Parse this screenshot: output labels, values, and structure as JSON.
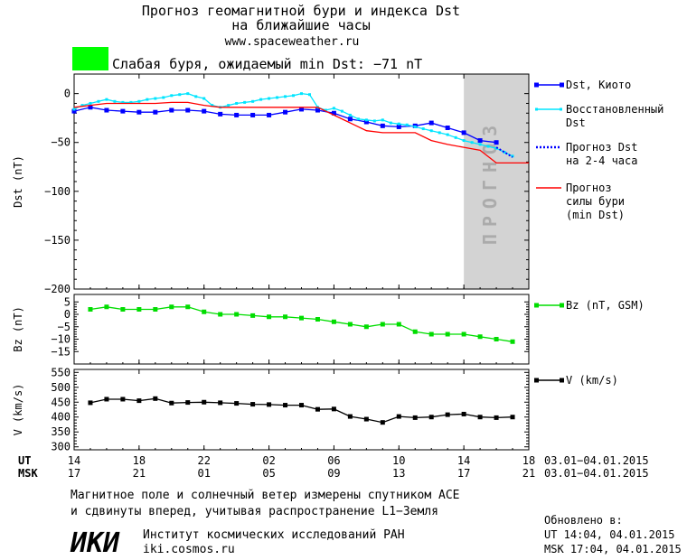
{
  "header": {
    "title_line1": "Прогноз геомагнитной бури и индекса Dst",
    "title_line2": "на ближайшие часы",
    "url": "www.spaceweather.ru",
    "storm_color": "#00ff00",
    "storm_text": "Слабая буря, ожидаемый min Dst: −71 nT"
  },
  "forecast_label": "ПРОГНОЗ",
  "chart_data": [
    {
      "type": "line",
      "ylabel": "Dst (nT)",
      "ylim": [
        -200,
        20
      ],
      "yticks": [
        0,
        -50,
        -100,
        -150,
        -200
      ],
      "ytick_labels": [
        "0",
        "−50",
        "−100",
        "−150",
        "−200"
      ],
      "x_range_hours": [
        14,
        42
      ],
      "forecast_region": [
        14,
        18
      ],
      "series": [
        {
          "name": "Dst, Киото",
          "color": "#0000ff",
          "marker": "square",
          "x": [
            14,
            15,
            16,
            17,
            18,
            19,
            20,
            21,
            22,
            23,
            24,
            25,
            26,
            27,
            28,
            29,
            30,
            31,
            32,
            33,
            34,
            35,
            36,
            37,
            38,
            39,
            40
          ],
          "values": [
            -18,
            -14,
            -17,
            -18,
            -19,
            -19,
            -17,
            -17,
            -18,
            -21,
            -22,
            -22,
            -22,
            -19,
            -16,
            -17,
            -20,
            -26,
            -29,
            -33,
            -34,
            -33,
            -30,
            -35,
            -40,
            -48,
            -50
          ]
        },
        {
          "name": "Восстановленный Dst",
          "color": "#00e5ff",
          "marker": "dot",
          "x": [
            14,
            14.5,
            15,
            15.5,
            16,
            16.5,
            17,
            17.5,
            18,
            18.5,
            19,
            19.5,
            20,
            20.5,
            21,
            21.5,
            22,
            22.5,
            23,
            23.5,
            24,
            24.5,
            25,
            25.5,
            26,
            26.5,
            27,
            27.5,
            28,
            28.5,
            29,
            29.5,
            30,
            30.5,
            31,
            31.5,
            32,
            32.5,
            33,
            33.5,
            34,
            34.5,
            35,
            35.5,
            36,
            36.5,
            37,
            37.5,
            38,
            38.5,
            39,
            39.5,
            40,
            40.5,
            41
          ],
          "values": [
            -16,
            -12,
            -10,
            -8,
            -6,
            -8,
            -9,
            -9,
            -8,
            -6,
            -5,
            -4,
            -2,
            -1,
            0,
            -3,
            -5,
            -12,
            -14,
            -12,
            -10,
            -9,
            -8,
            -6,
            -5,
            -4,
            -3,
            -2,
            0,
            -1,
            -14,
            -17,
            -15,
            -18,
            -22,
            -26,
            -27,
            -28,
            -27,
            -30,
            -31,
            -32,
            -34,
            -36,
            -38,
            -40,
            -42,
            -45,
            -48,
            -50,
            -52,
            -54,
            -56,
            -60,
            -64
          ]
        },
        {
          "name": "Прогноз Dst на 2-4 часа",
          "color": "#0000ff",
          "marker": "none",
          "style": "dotted",
          "x": [
            40,
            40.5,
            41
          ],
          "values": [
            -55,
            -60,
            -65
          ]
        },
        {
          "name": "Прогноз силы бури (min Dst)",
          "color": "#ff0000",
          "marker": "none",
          "x": [
            14,
            15,
            16,
            17,
            18,
            19,
            20,
            21,
            22,
            23,
            24,
            25,
            26,
            27,
            28,
            29,
            30,
            31,
            32,
            33,
            34,
            35,
            36,
            37,
            38,
            39,
            40,
            41,
            42
          ],
          "values": [
            -14,
            -12,
            -10,
            -10,
            -10,
            -10,
            -9,
            -9,
            -12,
            -14,
            -14,
            -14,
            -14,
            -14,
            -14,
            -14,
            -22,
            -30,
            -38,
            -40,
            -40,
            -40,
            -48,
            -52,
            -55,
            -58,
            -71,
            -71,
            -71
          ]
        }
      ]
    },
    {
      "type": "line",
      "ylabel": "Bz (nT)",
      "ylim": [
        -20,
        8
      ],
      "yticks": [
        5,
        0,
        -5,
        -10,
        -15
      ],
      "ytick_labels": [
        "5",
        "0",
        "−5",
        "−10",
        "−15"
      ],
      "series": [
        {
          "name": "Bz (nT, GSM)",
          "color": "#00dd00",
          "marker": "square",
          "x": [
            15,
            16,
            17,
            18,
            19,
            20,
            21,
            22,
            23,
            24,
            25,
            26,
            27,
            28,
            29,
            30,
            31,
            32,
            33,
            34,
            35,
            36,
            37,
            38,
            39,
            40,
            41
          ],
          "values": [
            2,
            3,
            2,
            2,
            2,
            3,
            3,
            1,
            0,
            0,
            -0.5,
            -1,
            -1,
            -1.5,
            -2,
            -3,
            -4,
            -5,
            -4,
            -4,
            -7,
            -8,
            -8,
            -8,
            -9,
            -10,
            -11
          ]
        }
      ]
    },
    {
      "type": "line",
      "ylabel": "V (km/s)",
      "ylim": [
        290,
        560
      ],
      "yticks": [
        550,
        500,
        450,
        400,
        350,
        300
      ],
      "ytick_labels": [
        "550",
        "500",
        "450",
        "400",
        "350",
        "300"
      ],
      "series": [
        {
          "name": "V (km/s)",
          "color": "#000000",
          "marker": "square",
          "x": [
            15,
            16,
            17,
            18,
            19,
            20,
            21,
            22,
            23,
            24,
            25,
            26,
            27,
            28,
            29,
            30,
            31,
            32,
            33,
            34,
            35,
            36,
            37,
            38,
            39,
            40,
            41
          ],
          "values": [
            448,
            460,
            460,
            455,
            462,
            447,
            449,
            450,
            448,
            446,
            443,
            442,
            440,
            440,
            426,
            427,
            402,
            393,
            382,
            402,
            398,
            400,
            408,
            410,
            400,
            398,
            400
          ]
        }
      ]
    }
  ],
  "x_axis": {
    "ut_label": "UT",
    "msk_label": "MSK",
    "ut_ticks": [
      "14",
      "18",
      "22",
      "02",
      "06",
      "10",
      "14",
      "18"
    ],
    "msk_ticks": [
      "17",
      "21",
      "01",
      "05",
      "09",
      "13",
      "17",
      "21"
    ],
    "ut_range": "03.01−04.01.2015",
    "msk_range": "03.01−04.01.2015"
  },
  "footer": {
    "note_line1": "Магнитное поле и солнечный ветер измерены спутником ACE",
    "note_line2": "и сдвинуты вперед, учитывая распространение L1−Земля",
    "logo_text": "ИКИ",
    "institute": "Институт космических исследований РАН",
    "site": "iki.cosmos.ru",
    "updated_label": "Обновлено в:",
    "updated_ut": "UT   14:04, 04.01.2015",
    "updated_msk": "MSK 17:04, 04.01.2015"
  }
}
